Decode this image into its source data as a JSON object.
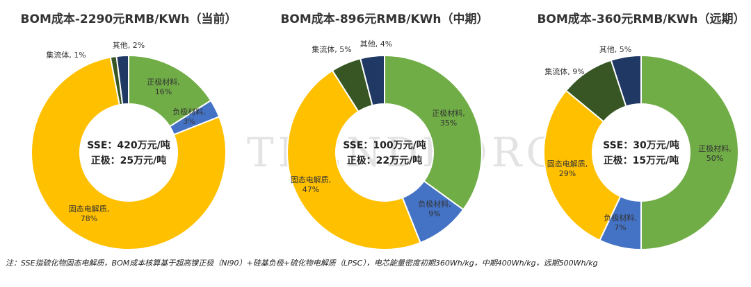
{
  "watermark": "TRENDFORCE",
  "colors": {
    "cathode": "#70AD47",
    "anode": "#4472C4",
    "electrolyte": "#FFC000",
    "collector": "#375623",
    "other": "#203864"
  },
  "chart_data": [
    {
      "type": "pie",
      "title": "BOM成本-2290元RMB/KWh（当前）",
      "center_lines": [
        "SSE：420万元/吨",
        "正极：25万元/吨"
      ],
      "slices": [
        {
          "name": "正极材料",
          "value": 16,
          "label": "16%",
          "color": "#70AD47"
        },
        {
          "name": "负极材料",
          "value": 3,
          "label": "3%",
          "color": "#4472C4"
        },
        {
          "name": "固态电解质",
          "value": 78,
          "label": "78%",
          "color": "#FFC000"
        },
        {
          "name": "集流体",
          "value": 1,
          "label": "1%",
          "color": "#375623"
        },
        {
          "name": "其他",
          "value": 2,
          "label": "2%",
          "color": "#203864"
        }
      ]
    },
    {
      "type": "pie",
      "title": "BOM成本-896元RMB/KWh（中期）",
      "center_lines": [
        "SSE：100万元/吨",
        "正极：22万元/吨"
      ],
      "slices": [
        {
          "name": "正极材料",
          "value": 35,
          "label": "35%",
          "color": "#70AD47"
        },
        {
          "name": "负极材料",
          "value": 9,
          "label": "9%",
          "color": "#4472C4"
        },
        {
          "name": "固态电解质",
          "value": 47,
          "label": "47%",
          "color": "#FFC000"
        },
        {
          "name": "集流体",
          "value": 5,
          "label": "5%",
          "color": "#375623"
        },
        {
          "name": "其他",
          "value": 4,
          "label": "4%",
          "color": "#203864"
        }
      ]
    },
    {
      "type": "pie",
      "title": "BOM成本-360元RMB/KWh（远期）",
      "center_lines": [
        "SSE：30万元/吨",
        "正极：15万元/吨"
      ],
      "slices": [
        {
          "name": "正极材料",
          "value": 50,
          "label": "50%",
          "color": "#70AD47"
        },
        {
          "name": "负极材料",
          "value": 7,
          "label": "7%",
          "color": "#4472C4"
        },
        {
          "name": "固态电解质",
          "value": 29,
          "label": "29%",
          "color": "#FFC000"
        },
        {
          "name": "集流体",
          "value": 9,
          "label": "9%",
          "color": "#375623"
        },
        {
          "name": "其他",
          "value": 5,
          "label": "5%",
          "color": "#203864"
        }
      ]
    }
  ],
  "footnote": "注：SSE指硫化物固态电解质，BOM成本核算基于超高镍正极（Ni90）+硅基负极+硫化物电解质（LPSC），电芯能量密度初期360Wh/kg，中期400Wh/kg，远期500Wh/kg"
}
